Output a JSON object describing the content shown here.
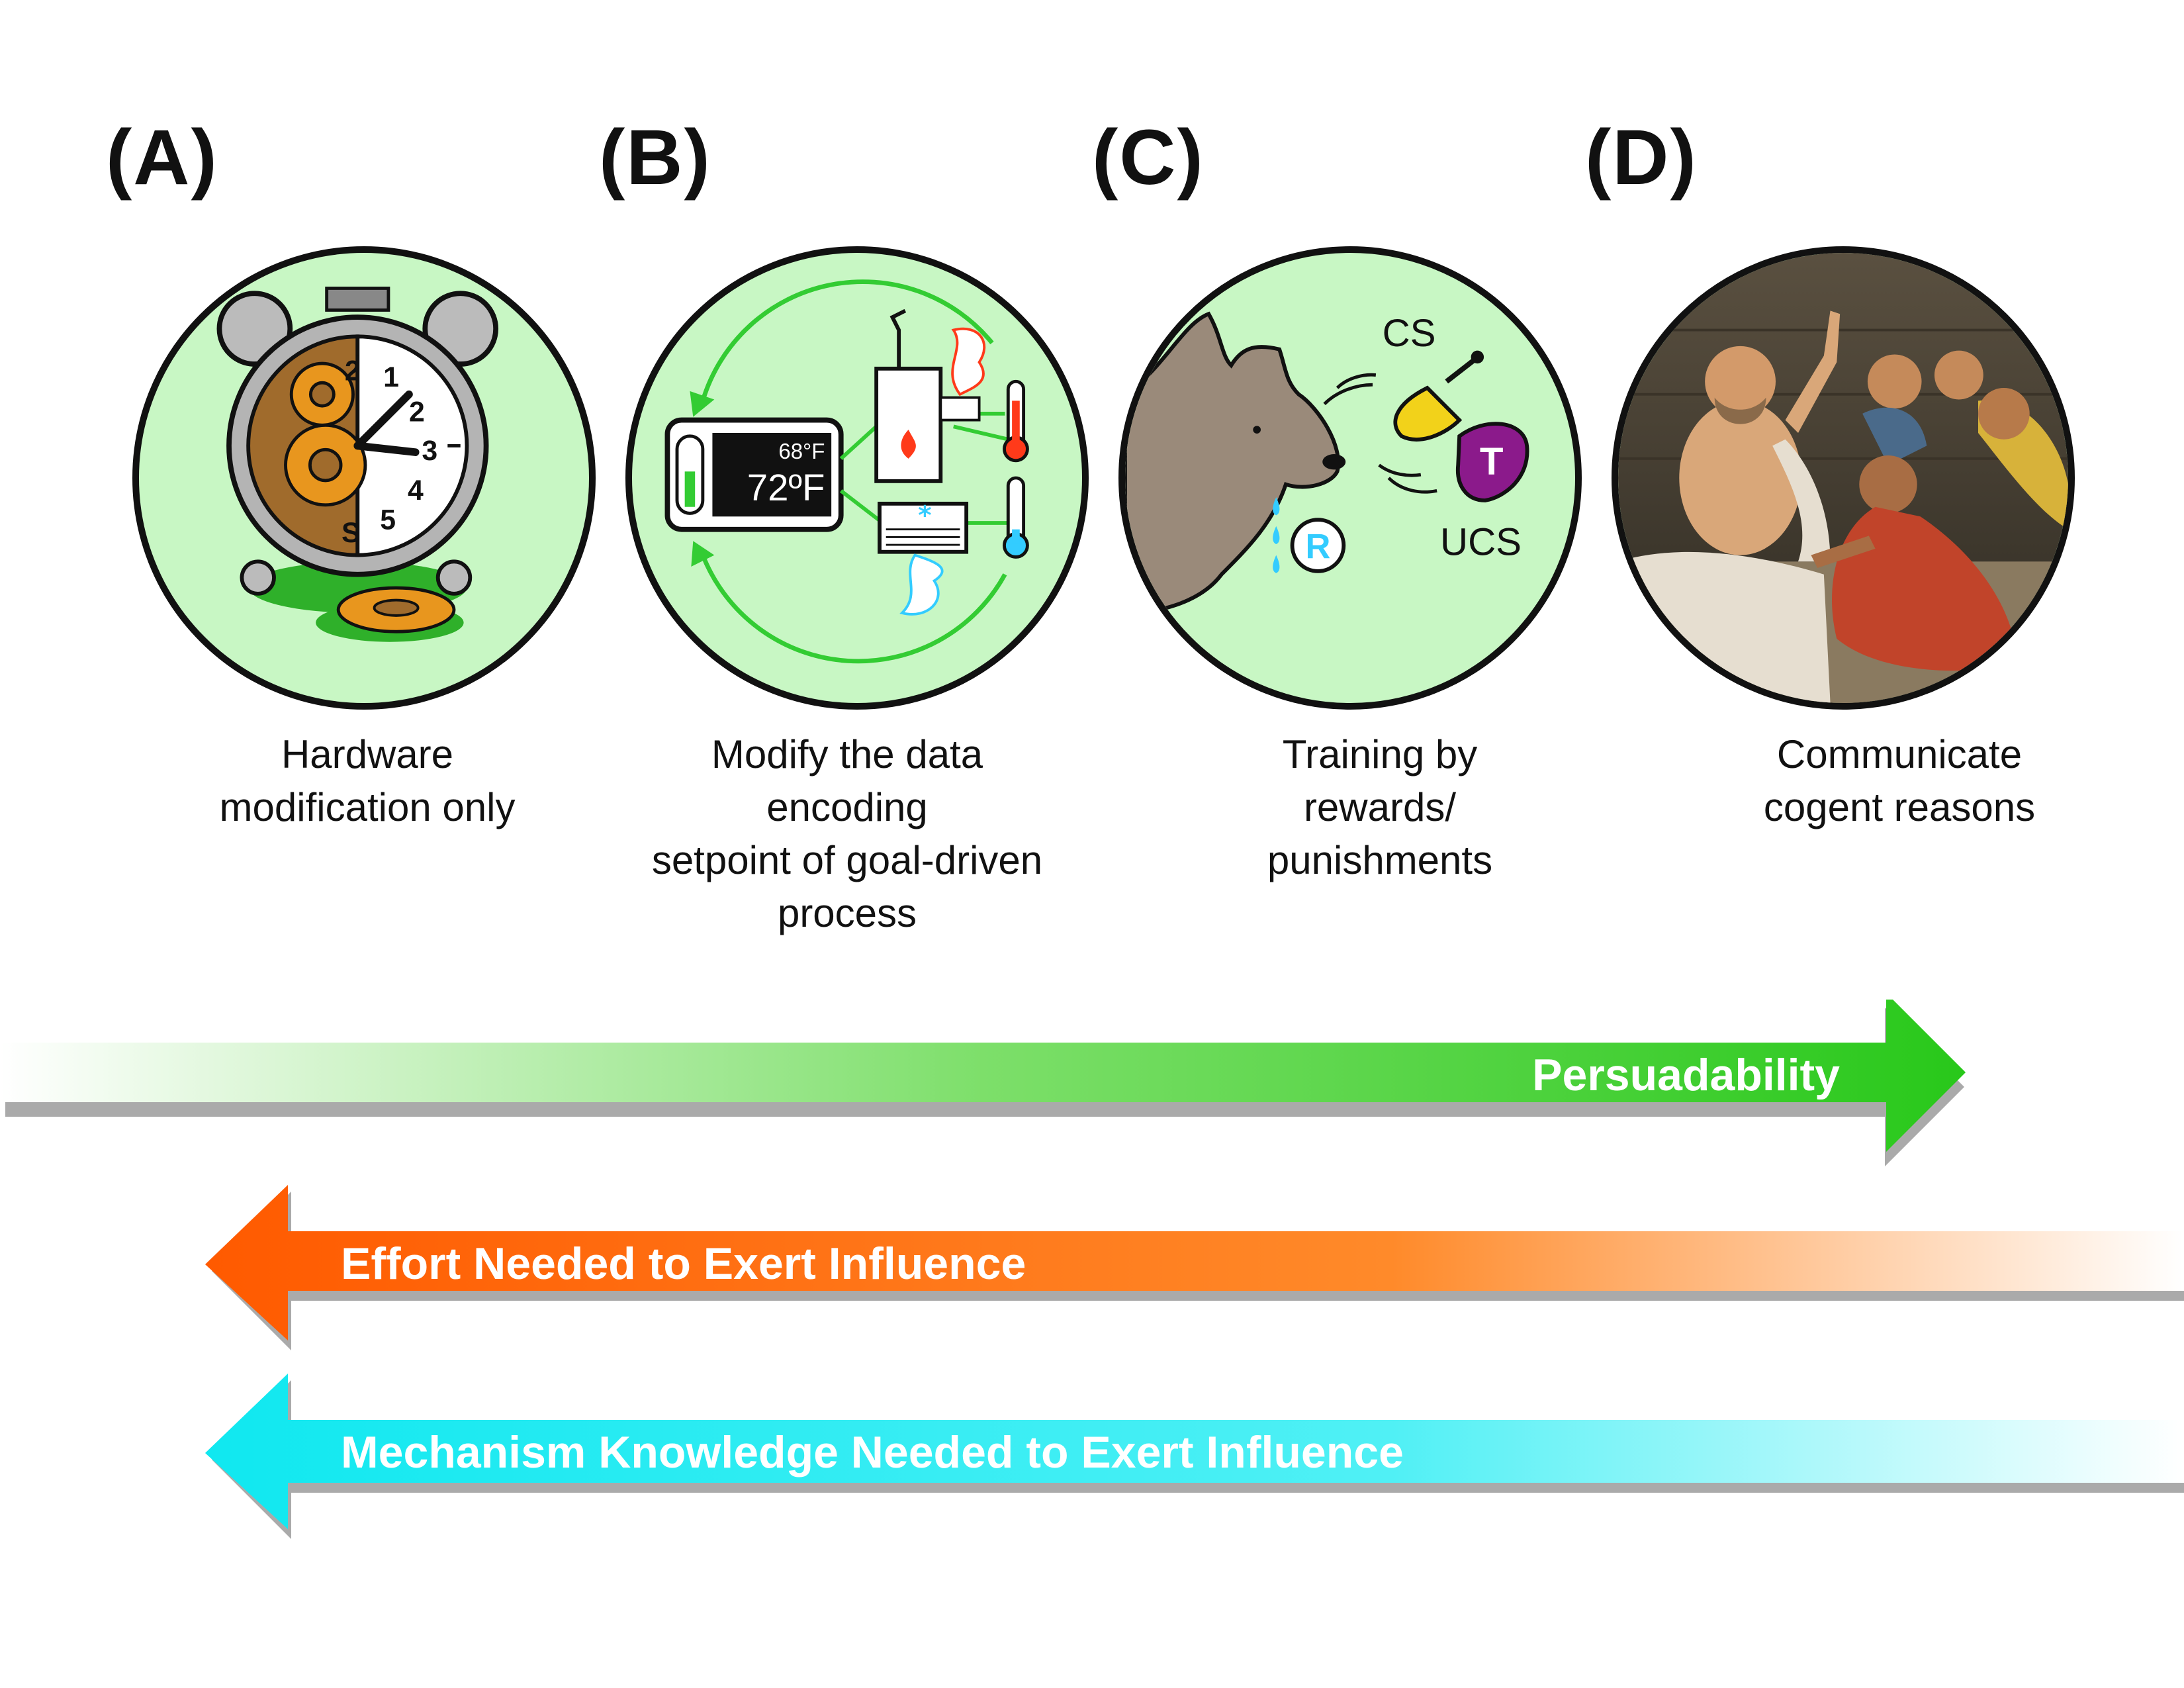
{
  "panels": [
    {
      "letter": "(A)",
      "caption_lines": [
        "Hardware",
        "modification only"
      ]
    },
    {
      "letter": "(B)",
      "caption_lines": [
        "Modify the data encoding",
        "setpoint of goal-driven",
        "process"
      ]
    },
    {
      "letter": "(C)",
      "caption_lines": [
        "Training by",
        "rewards/",
        "punishments"
      ]
    },
    {
      "letter": "(D)",
      "caption_lines": [
        "Communicate",
        "cogent reasons"
      ]
    }
  ],
  "clock": {
    "numbers": [
      "1",
      "2",
      "3",
      "4",
      "5",
      "2",
      "S"
    ]
  },
  "thermostat": {
    "set_temp": "68°F",
    "current_temp": "72ºF"
  },
  "conditioning": {
    "cs_label": "CS",
    "ucs_label": "UCS",
    "r_label": "R",
    "meat_letter": "T"
  },
  "arrows": {
    "persuadability": {
      "label": "Persuadability",
      "direction": "right",
      "color": "#33cc1a"
    },
    "effort": {
      "label": "Effort Needed to Exert Influence",
      "direction": "left",
      "color": "#ff6a0a"
    },
    "mechanism": {
      "label": "Mechanism Knowledge Needed to Exert Influence",
      "direction": "left",
      "color": "#1ef0f5"
    }
  },
  "colors": {
    "circle_fill": "#c8f7c4",
    "green_flow": "#33cc33",
    "gear": "#e8961e"
  }
}
